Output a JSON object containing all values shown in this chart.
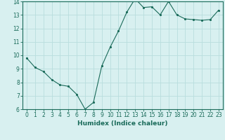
{
  "x": [
    0,
    1,
    2,
    3,
    4,
    5,
    6,
    7,
    8,
    9,
    10,
    11,
    12,
    13,
    14,
    15,
    16,
    17,
    18,
    19,
    20,
    21,
    22,
    23
  ],
  "y": [
    9.8,
    9.1,
    8.8,
    8.2,
    7.8,
    7.7,
    7.1,
    6.0,
    6.5,
    9.2,
    10.6,
    11.8,
    13.2,
    14.2,
    13.55,
    13.6,
    13.0,
    14.0,
    13.0,
    12.7,
    12.65,
    12.6,
    12.65,
    13.35
  ],
  "xlabel": "Humidex (Indice chaleur)",
  "ylim": [
    6,
    14
  ],
  "yticks": [
    6,
    7,
    8,
    9,
    10,
    11,
    12,
    13,
    14
  ],
  "xticks": [
    0,
    1,
    2,
    3,
    4,
    5,
    6,
    7,
    8,
    9,
    10,
    11,
    12,
    13,
    14,
    15,
    16,
    17,
    18,
    19,
    20,
    21,
    22,
    23
  ],
  "line_color": "#1a6b5a",
  "marker": ".",
  "bg_color": "#d8f0f0",
  "grid_color": "#b8dede",
  "axis_color": "#1a6b5a",
  "tick_label_fontsize": 5.5,
  "xlabel_fontsize": 6.5,
  "figsize": [
    3.2,
    2.0
  ],
  "dpi": 100
}
